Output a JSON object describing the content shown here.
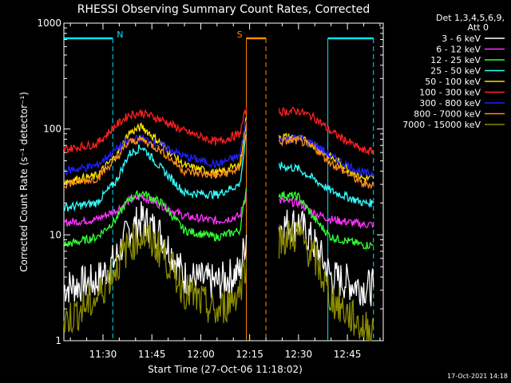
{
  "chart_data": {
    "type": "line",
    "title": "RHESSI Observing Summary Count Rates, Corrected",
    "xlabel": "Start Time (27-Oct-06 11:18:02)",
    "ylabel": "Corrected Count Rate (s⁻¹ detector⁻¹)",
    "xlim": [
      "11:18",
      "12:56"
    ],
    "ylim": [
      1,
      1000
    ],
    "yscale": "log",
    "x_ticks": [
      "11:30",
      "11:45",
      "12:00",
      "12:15",
      "12:30",
      "12:45"
    ],
    "y_ticks": [
      "1",
      "10",
      "100",
      "1000"
    ],
    "legend_header": [
      "Det 1,3,4,5,6,9,",
      "Att 0"
    ],
    "legend_position": "top-right",
    "footer": "17-Oct-2021 14:18",
    "markers": [
      {
        "label": "N",
        "color": "#00e5ff",
        "bar": [
          "11:18",
          "11:33"
        ],
        "line_solid": null,
        "line_dashed": "11:33"
      },
      {
        "label": "",
        "color": "#00e5ff",
        "bar": [
          "12:39",
          "12:53"
        ],
        "line_solid": "12:39",
        "line_dashed": "12:53"
      },
      {
        "label": "S",
        "color": "#ff8c00",
        "bar": [
          "12:14",
          "12:20"
        ],
        "line_solid": "12:14",
        "line_dashed": "12:20"
      }
    ],
    "gap": [
      "12:13",
      "12:20"
    ],
    "series": [
      {
        "name": "3 - 6 keV",
        "color": "#ffffff",
        "x": [
          "11:18",
          "11:28",
          "11:34",
          "11:38",
          "11:42",
          "11:48",
          "11:55",
          "12:05",
          "12:12",
          "12:14",
          "12:20",
          "12:24",
          "12:30",
          "12:35",
          "12:40",
          "12:50",
          "12:53"
        ],
        "values": [
          3.2,
          3.6,
          6,
          11,
          14,
          10,
          4,
          3.5,
          4.5,
          10,
          null,
          12,
          13,
          8,
          4,
          3.2,
          3.2
        ]
      },
      {
        "name": "6 - 12 keV",
        "color": "#ff33ff",
        "x": [
          "11:18",
          "11:28",
          "11:34",
          "11:38",
          "11:42",
          "11:48",
          "11:55",
          "12:05",
          "12:12",
          "12:14",
          "12:20",
          "12:24",
          "12:30",
          "12:35",
          "12:40",
          "12:50",
          "12:53"
        ],
        "values": [
          13,
          14,
          17,
          21,
          23,
          19,
          15,
          13.5,
          15,
          24,
          null,
          21,
          20,
          16,
          14,
          12.5,
          12.5
        ]
      },
      {
        "name": "12 - 25 keV",
        "color": "#33ff33",
        "x": [
          "11:18",
          "11:28",
          "11:34",
          "11:38",
          "11:42",
          "11:48",
          "11:55",
          "12:05",
          "12:12",
          "12:14",
          "12:20",
          "12:24",
          "12:30",
          "12:35",
          "12:40",
          "12:50",
          "12:53"
        ],
        "values": [
          8,
          9.5,
          14,
          22,
          25,
          20,
          11,
          9.5,
          11,
          28,
          null,
          24,
          23,
          14,
          9.5,
          8,
          8
        ]
      },
      {
        "name": "25 - 50 keV",
        "color": "#33ffff",
        "x": [
          "11:18",
          "11:28",
          "11:34",
          "11:38",
          "11:42",
          "11:48",
          "11:55",
          "12:05",
          "12:12",
          "12:14",
          "12:20",
          "12:24",
          "12:30",
          "12:35",
          "12:40",
          "12:50",
          "12:53"
        ],
        "values": [
          18,
          20,
          32,
          58,
          68,
          42,
          25,
          24,
          30,
          90,
          null,
          45,
          42,
          33,
          26,
          20,
          20
        ]
      },
      {
        "name": "50 - 100 keV",
        "color": "#ffe000",
        "x": [
          "11:18",
          "11:28",
          "11:34",
          "11:38",
          "11:42",
          "11:48",
          "11:55",
          "12:05",
          "12:12",
          "12:14",
          "12:20",
          "12:24",
          "12:30",
          "12:35",
          "12:40",
          "12:50",
          "12:53"
        ],
        "values": [
          32,
          36,
          56,
          92,
          105,
          72,
          45,
          38,
          46,
          130,
          null,
          85,
          82,
          70,
          54,
          34,
          34
        ]
      },
      {
        "name": "100 - 300 keV",
        "color": "#ff2020",
        "x": [
          "11:18",
          "11:28",
          "11:34",
          "11:38",
          "11:42",
          "11:48",
          "11:55",
          "12:05",
          "12:12",
          "12:14",
          "12:20",
          "12:24",
          "12:30",
          "12:35",
          "12:40",
          "12:50",
          "12:53"
        ],
        "values": [
          64,
          72,
          108,
          136,
          142,
          122,
          95,
          75,
          90,
          160,
          null,
          145,
          148,
          128,
          94,
          62,
          62
        ]
      },
      {
        "name": "300 - 800 keV",
        "color": "#2020ff",
        "x": [
          "11:18",
          "11:28",
          "11:34",
          "11:38",
          "11:42",
          "11:48",
          "11:55",
          "12:05",
          "12:12",
          "12:14",
          "12:20",
          "12:24",
          "12:30",
          "12:35",
          "12:40",
          "12:50",
          "12:53"
        ],
        "values": [
          40,
          45,
          64,
          78,
          82,
          70,
          55,
          46,
          56,
          120,
          null,
          80,
          82,
          72,
          55,
          38,
          38
        ]
      },
      {
        "name": "800 - 7000 keV",
        "color": "#ff8c1a",
        "x": [
          "11:18",
          "11:28",
          "11:34",
          "11:38",
          "11:42",
          "11:48",
          "11:55",
          "12:05",
          "12:12",
          "12:14",
          "12:20",
          "12:24",
          "12:30",
          "12:35",
          "12:40",
          "12:50",
          "12:53"
        ],
        "values": [
          30,
          34,
          52,
          75,
          80,
          62,
          40,
          36,
          42,
          110,
          null,
          76,
          78,
          66,
          48,
          30,
          30
        ]
      },
      {
        "name": "7000 - 15000 keV",
        "color": "#8b8b00",
        "x": [
          "11:18",
          "11:28",
          "11:34",
          "11:38",
          "11:42",
          "11:48",
          "11:55",
          "12:05",
          "12:12",
          "12:14",
          "12:20",
          "12:24",
          "12:30",
          "12:35",
          "12:40",
          "12:50",
          "12:53"
        ],
        "values": [
          1.5,
          2.5,
          5,
          8,
          10,
          7,
          3,
          1.8,
          3,
          6,
          null,
          9,
          10,
          6,
          2.5,
          1.3,
          1.3
        ]
      }
    ]
  }
}
